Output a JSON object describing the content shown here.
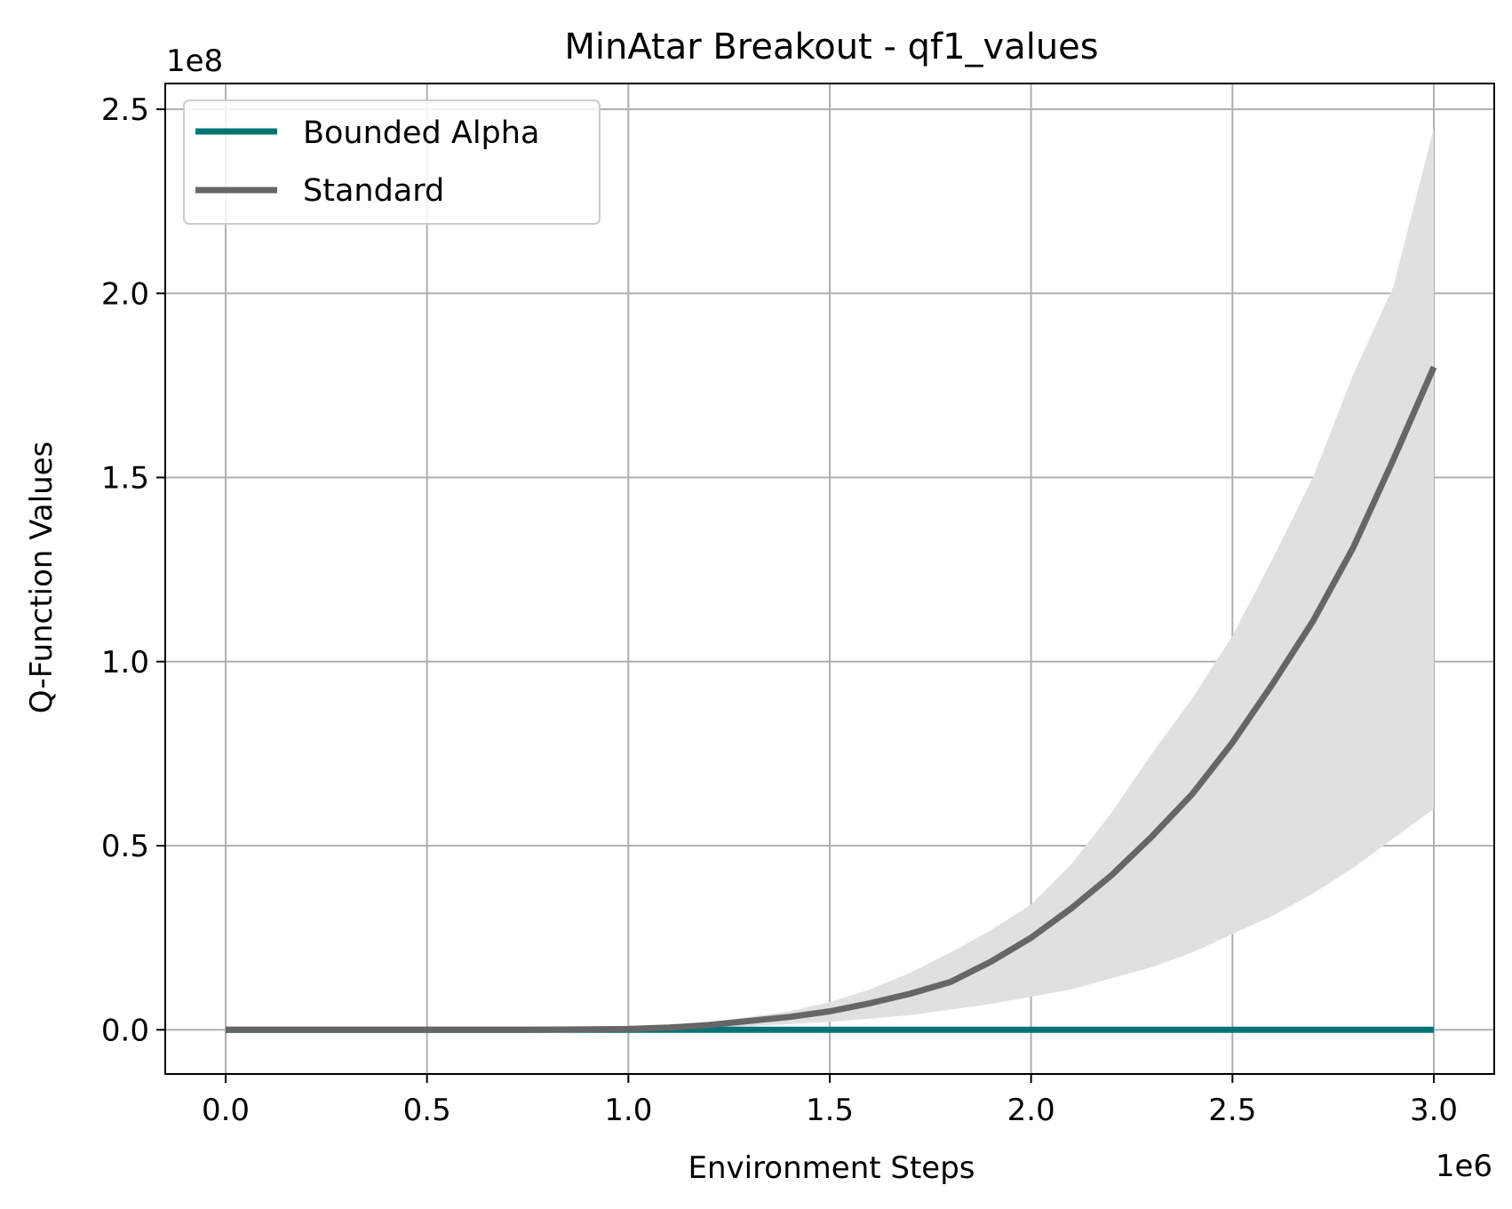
{
  "chart_data": {
    "type": "line",
    "title": "MinAtar Breakout - qf1_values",
    "xlabel": "Environment Steps",
    "ylabel": "Q-Function Values",
    "x_multiplier_label": "1e6",
    "y_multiplier_label": "1e8",
    "xlim": [
      -0.15,
      3.15
    ],
    "ylim": [
      -0.12,
      2.57
    ],
    "x_ticks": [
      0.0,
      0.5,
      1.0,
      1.5,
      2.0,
      2.5,
      3.0
    ],
    "x_tick_labels": [
      "0.0",
      "0.5",
      "1.0",
      "1.5",
      "2.0",
      "2.5",
      "3.0"
    ],
    "y_ticks": [
      0.0,
      0.5,
      1.0,
      1.5,
      2.0,
      2.5
    ],
    "y_tick_labels": [
      "0.0",
      "0.5",
      "1.0",
      "1.5",
      "2.0",
      "2.5"
    ],
    "grid": true,
    "legend_position": "upper-left",
    "x": [
      0.0,
      0.25,
      0.5,
      0.75,
      1.0,
      1.1,
      1.2,
      1.3,
      1.4,
      1.5,
      1.6,
      1.7,
      1.8,
      1.9,
      2.0,
      2.1,
      2.2,
      2.3,
      2.4,
      2.5,
      2.6,
      2.7,
      2.8,
      2.9,
      3.0
    ],
    "series": [
      {
        "name": "Bounded Alpha",
        "color": "#007475",
        "values": [
          0,
          0,
          0,
          0,
          0,
          0,
          0,
          0,
          0,
          0,
          0,
          0,
          0,
          0,
          0,
          0,
          0,
          0,
          0,
          0,
          0,
          0,
          0,
          0,
          0
        ]
      },
      {
        "name": "Standard",
        "color": "#666666",
        "band_color": "#e0e0e0",
        "values": [
          0,
          0,
          0,
          0,
          0.002,
          0.006,
          0.013,
          0.024,
          0.035,
          0.05,
          0.072,
          0.098,
          0.13,
          0.185,
          0.25,
          0.33,
          0.42,
          0.525,
          0.64,
          0.78,
          0.94,
          1.11,
          1.31,
          1.55,
          1.8
        ],
        "band_lower": [
          0,
          0,
          0,
          0,
          0.001,
          0.003,
          0.006,
          0.01,
          0.015,
          0.022,
          0.03,
          0.04,
          0.055,
          0.07,
          0.09,
          0.11,
          0.14,
          0.17,
          0.21,
          0.26,
          0.31,
          0.37,
          0.44,
          0.52,
          0.6
        ],
        "band_upper": [
          0,
          0,
          0,
          0,
          0.003,
          0.01,
          0.02,
          0.035,
          0.05,
          0.075,
          0.11,
          0.155,
          0.21,
          0.27,
          0.34,
          0.45,
          0.59,
          0.75,
          0.9,
          1.07,
          1.28,
          1.5,
          1.78,
          2.02,
          2.45
        ]
      }
    ]
  }
}
